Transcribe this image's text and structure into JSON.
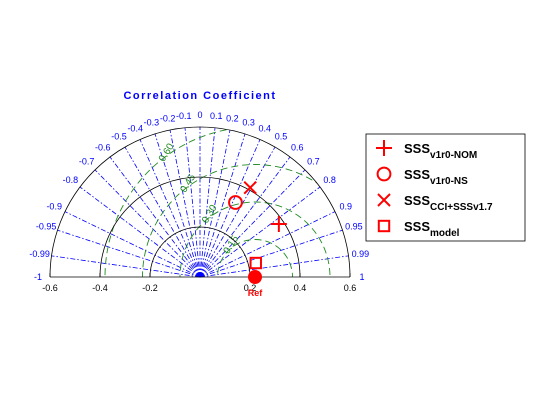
{
  "chart_data": {
    "type": "scatter",
    "subtype": "taylor-diagram",
    "title": "Correlation Coefficient",
    "xlabel": "",
    "ylabel": "",
    "std_axis": {
      "range": [
        -0.6,
        0.6
      ],
      "ticks": [
        "-0.6",
        "-0.4",
        "-0.2",
        "0.2",
        "0.4",
        "0.6"
      ],
      "arcs": [
        0.2,
        0.4,
        0.6
      ]
    },
    "correlation_ticks": [
      {
        "value": -1,
        "label": "-1"
      },
      {
        "value": -0.99,
        "label": "-0.99"
      },
      {
        "value": -0.95,
        "label": "-0.95"
      },
      {
        "value": -0.9,
        "label": "-0.9"
      },
      {
        "value": -0.8,
        "label": "-0.8"
      },
      {
        "value": -0.7,
        "label": "-0.7"
      },
      {
        "value": -0.6,
        "label": "-0.6"
      },
      {
        "value": -0.5,
        "label": "-0.5"
      },
      {
        "value": -0.4,
        "label": "-0.4"
      },
      {
        "value": -0.3,
        "label": "-0.3"
      },
      {
        "value": -0.2,
        "label": "-0.2"
      },
      {
        "value": -0.1,
        "label": "-0.1"
      },
      {
        "value": 0,
        "label": "0"
      },
      {
        "value": 0.1,
        "label": "0.1"
      },
      {
        "value": 0.2,
        "label": "0.2"
      },
      {
        "value": 0.3,
        "label": "0.3"
      },
      {
        "value": 0.4,
        "label": "0.4"
      },
      {
        "value": 0.5,
        "label": "0.5"
      },
      {
        "value": 0.6,
        "label": "0.6"
      },
      {
        "value": 0.7,
        "label": "0.7"
      },
      {
        "value": 0.8,
        "label": "0.8"
      },
      {
        "value": 0.9,
        "label": "0.9"
      },
      {
        "value": 0.95,
        "label": "0.95"
      },
      {
        "value": 0.99,
        "label": "0.99"
      },
      {
        "value": 1,
        "label": "1"
      }
    ],
    "rms_contours": [
      {
        "value": 0.15,
        "label": "0.15"
      },
      {
        "value": 0.3,
        "label": "0.30"
      },
      {
        "value": 0.45,
        "label": "0.45"
      },
      {
        "value": 0.6,
        "label": "0.60"
      }
    ],
    "reference": {
      "label": "Ref",
      "std": 0.22,
      "corr": 1.0
    },
    "series": [
      {
        "name": "SSS",
        "sub": "v1r0-NOM",
        "marker": "plus",
        "std": 0.38,
        "corr": 0.83
      },
      {
        "name": "SSS",
        "sub": "v1r0-NS",
        "marker": "circle",
        "std": 0.33,
        "corr": 0.43
      },
      {
        "name": "SSS",
        "sub": "CCI+SSSv1.7",
        "marker": "x",
        "std": 0.41,
        "corr": 0.49
      },
      {
        "name": "SSS",
        "sub": "model",
        "marker": "square",
        "std": 0.23,
        "corr": 0.97
      }
    ],
    "colors": {
      "markers": "#ff0000",
      "correlation": "#0000ff",
      "rms": "#228b22",
      "axes": "#000000"
    },
    "legend_position": "right"
  }
}
